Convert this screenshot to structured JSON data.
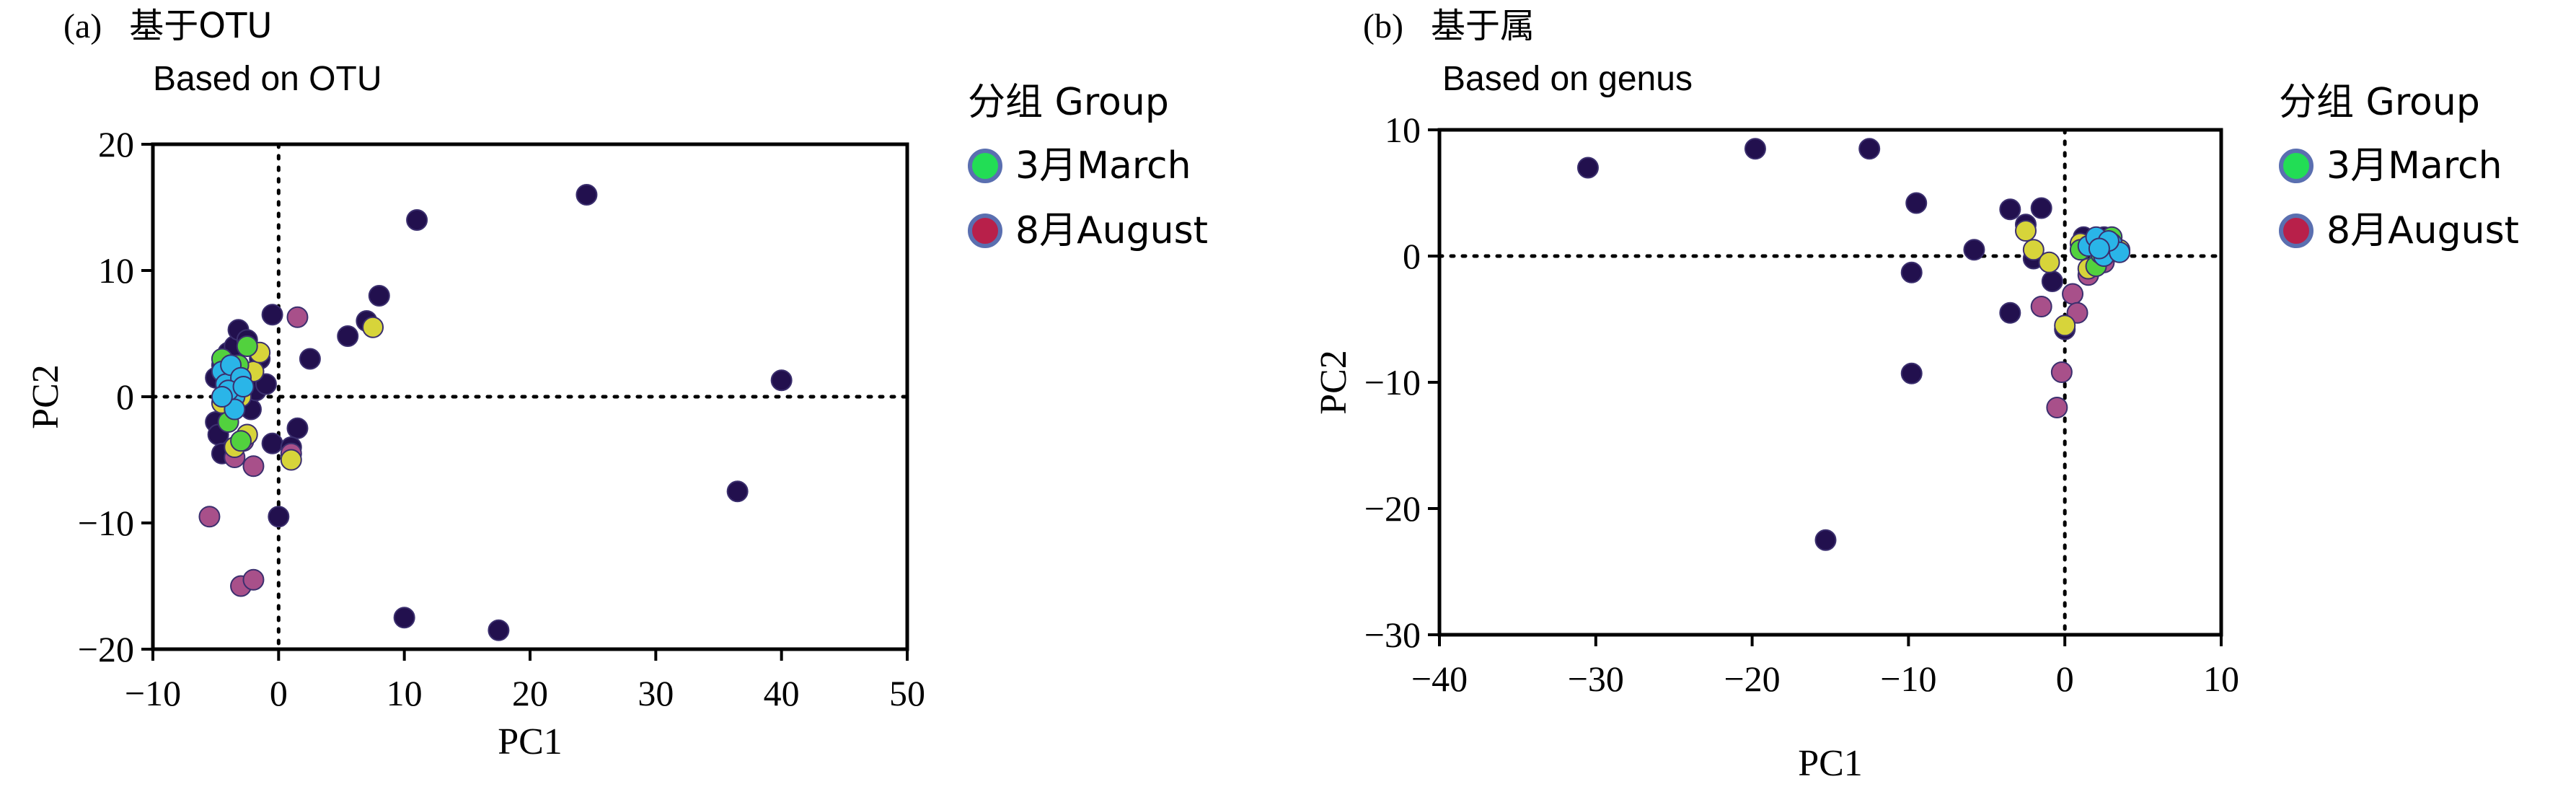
{
  "chart_data": [
    {
      "type": "scatter",
      "panel_label": "(a)",
      "title": "基于OTU",
      "subtitle": "Based on OTU",
      "xlabel": "PC1",
      "ylabel": "PC2",
      "xlim": [
        -10,
        50
      ],
      "ylim": [
        -20,
        20
      ],
      "xticks": [
        -10,
        0,
        10,
        20,
        30,
        40,
        50
      ],
      "yticks": [
        -20,
        -10,
        0,
        10,
        20
      ],
      "xtick_labels": [
        "−10",
        "0",
        "10",
        "20",
        "30",
        "40",
        "50"
      ],
      "ytick_labels": [
        "−20",
        "−10",
        "0",
        "10",
        "20"
      ],
      "grid": false,
      "reference_lines": {
        "x": 0,
        "y": 0,
        "style": "dotted"
      },
      "legend": {
        "title": "分组 Group",
        "placement": "outside-right",
        "entries": [
          {
            "label": "3月March",
            "color": "#22dd55"
          },
          {
            "label": "8月August",
            "color": "#b8204a"
          }
        ]
      },
      "series": [
        {
          "color": "#22104e",
          "points": [
            [
              -5,
              -2
            ],
            [
              -5,
              1.5
            ],
            [
              -4.8,
              -3
            ],
            [
              -4.5,
              -4.5
            ],
            [
              -4.5,
              2.5
            ],
            [
              -4,
              0
            ],
            [
              -4,
              3.5
            ],
            [
              -3.8,
              -1
            ],
            [
              -3.5,
              4
            ],
            [
              -3.2,
              5.3
            ],
            [
              -2.5,
              4.5
            ],
            [
              -2.2,
              -1
            ],
            [
              -1.8,
              0.5
            ],
            [
              -1.5,
              3
            ],
            [
              -1,
              1
            ],
            [
              -0.5,
              6.5
            ],
            [
              -0.5,
              -3.7
            ],
            [
              0,
              -9.5
            ],
            [
              1.5,
              -2.5
            ],
            [
              1,
              -4
            ],
            [
              2.5,
              3
            ],
            [
              5.5,
              4.8
            ],
            [
              7,
              6
            ],
            [
              8,
              8
            ],
            [
              10,
              -17.5
            ],
            [
              11,
              14
            ],
            [
              17.5,
              -18.5
            ],
            [
              24.5,
              16
            ],
            [
              36.5,
              -7.5
            ],
            [
              40,
              1.3
            ]
          ]
        },
        {
          "color": "#a8508a",
          "points": [
            [
              -5.5,
              -9.5
            ],
            [
              -3,
              -15
            ],
            [
              -2,
              -14.5
            ],
            [
              -2,
              -5.5
            ],
            [
              -3.5,
              -4.8
            ],
            [
              -2.8,
              -3.5
            ],
            [
              1.5,
              6.3
            ],
            [
              1,
              -4.5
            ]
          ]
        },
        {
          "color": "#d7d43a",
          "points": [
            [
              -4,
              2
            ],
            [
              -3.5,
              -4
            ],
            [
              -2.5,
              -3
            ],
            [
              -3,
              0
            ],
            [
              -2,
              2
            ],
            [
              -1.5,
              3.5
            ],
            [
              1,
              -5
            ],
            [
              7.5,
              5.5
            ],
            [
              -4.5,
              -0.5
            ]
          ]
        },
        {
          "color": "#52d13e",
          "points": [
            [
              -4.5,
              3
            ],
            [
              -4,
              -2
            ],
            [
              -3.5,
              1
            ],
            [
              -3,
              -3.5
            ],
            [
              -2.5,
              4
            ],
            [
              -3.2,
              2.5
            ]
          ]
        },
        {
          "color": "#2ab5e8",
          "points": [
            [
              -4.5,
              2
            ],
            [
              -4.2,
              1
            ],
            [
              -3.8,
              2.5
            ],
            [
              -3.5,
              0
            ],
            [
              -3,
              1.5
            ],
            [
              -4,
              0.5
            ],
            [
              -3.5,
              -1
            ],
            [
              -2.8,
              0.8
            ],
            [
              -4.5,
              0
            ]
          ]
        }
      ]
    },
    {
      "type": "scatter",
      "panel_label": "(b)",
      "title": "基于属",
      "subtitle": "Based on genus",
      "xlabel": "PC1",
      "ylabel": "PC2",
      "xlim": [
        -40,
        10
      ],
      "ylim": [
        -30,
        10
      ],
      "xticks": [
        -40,
        -30,
        -20,
        -10,
        0,
        10
      ],
      "yticks": [
        -30,
        -20,
        -10,
        0,
        10
      ],
      "xtick_labels": [
        "−40",
        "−30",
        "−20",
        "−10",
        "0",
        "10"
      ],
      "ytick_labels": [
        "−30",
        "−20",
        "−10",
        "0",
        "10"
      ],
      "grid": false,
      "reference_lines": {
        "x": 0,
        "y": 0,
        "style": "dotted"
      },
      "legend": {
        "title": "分组 Group",
        "placement": "outside-right",
        "entries": [
          {
            "label": "3月March",
            "color": "#22dd55"
          },
          {
            "label": "8月August",
            "color": "#b8204a"
          }
        ]
      },
      "series": [
        {
          "color": "#22104e",
          "points": [
            [
              -30.5,
              7
            ],
            [
              -19.8,
              8.5
            ],
            [
              -12.5,
              8.5
            ],
            [
              -9.5,
              4.2
            ],
            [
              -9.8,
              -1.3
            ],
            [
              -9.8,
              -9.3
            ],
            [
              -15.3,
              -22.5
            ],
            [
              -5.8,
              0.5
            ],
            [
              -3.5,
              3.7
            ],
            [
              -3.5,
              -4.5
            ],
            [
              -2.5,
              2.5
            ],
            [
              -1.5,
              3.8
            ],
            [
              -2,
              -0.2
            ],
            [
              -0.8,
              -2
            ],
            [
              0,
              -5.8
            ],
            [
              1.2,
              1.5
            ],
            [
              2.5,
              1.5
            ]
          ]
        },
        {
          "color": "#a8508a",
          "points": [
            [
              -1.5,
              -4
            ],
            [
              -0.2,
              -9.2
            ],
            [
              -0.5,
              -12
            ],
            [
              0.5,
              -3
            ],
            [
              0.8,
              -4.5
            ],
            [
              1.5,
              -1.5
            ],
            [
              2.5,
              -0.5
            ]
          ]
        },
        {
          "color": "#d7d43a",
          "points": [
            [
              -2.5,
              2
            ],
            [
              -2,
              0.5
            ],
            [
              0,
              -5.5
            ],
            [
              1.5,
              -1
            ],
            [
              3.5,
              0.5
            ],
            [
              -1,
              -0.5
            ],
            [
              1,
              1
            ]
          ]
        },
        {
          "color": "#52d13e",
          "points": [
            [
              1,
              0.5
            ],
            [
              2,
              -0.8
            ],
            [
              3,
              1.5
            ],
            [
              2.3,
              0.2
            ]
          ]
        },
        {
          "color": "#2ab5e8",
          "points": [
            [
              1.5,
              0.8
            ],
            [
              2,
              1.5
            ],
            [
              2.5,
              0
            ],
            [
              3,
              1
            ],
            [
              3.5,
              0.3
            ],
            [
              2.8,
              1.2
            ],
            [
              2.2,
              0.6
            ]
          ]
        }
      ]
    }
  ]
}
